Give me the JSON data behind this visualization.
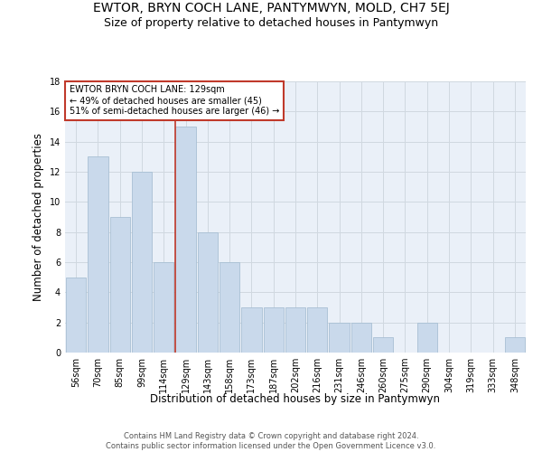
{
  "title": "EWTOR, BRYN COCH LANE, PANTYMWYN, MOLD, CH7 5EJ",
  "subtitle": "Size of property relative to detached houses in Pantymwyn",
  "xlabel": "Distribution of detached houses by size in Pantymwyn",
  "ylabel": "Number of detached properties",
  "categories": [
    "56sqm",
    "70sqm",
    "85sqm",
    "99sqm",
    "114sqm",
    "129sqm",
    "143sqm",
    "158sqm",
    "173sqm",
    "187sqm",
    "202sqm",
    "216sqm",
    "231sqm",
    "246sqm",
    "260sqm",
    "275sqm",
    "290sqm",
    "304sqm",
    "319sqm",
    "333sqm",
    "348sqm"
  ],
  "values": [
    5,
    13,
    9,
    12,
    6,
    15,
    8,
    6,
    3,
    3,
    3,
    3,
    2,
    2,
    1,
    0,
    2,
    0,
    0,
    0,
    1
  ],
  "bar_color": "#c9d9eb",
  "bar_edgecolor": "#a8bfd4",
  "marker_index": 5,
  "marker_line_color": "#c0392b",
  "annotation_line1": "EWTOR BRYN COCH LANE: 129sqm",
  "annotation_line2": "← 49% of detached houses are smaller (45)",
  "annotation_line3": "51% of semi-detached houses are larger (46) →",
  "annotation_box_edgecolor": "#c0392b",
  "ylim": [
    0,
    18
  ],
  "yticks": [
    0,
    2,
    4,
    6,
    8,
    10,
    12,
    14,
    16,
    18
  ],
  "grid_color": "#d0d8e0",
  "background_color": "#eaf0f8",
  "footer_line1": "Contains HM Land Registry data © Crown copyright and database right 2024.",
  "footer_line2": "Contains public sector information licensed under the Open Government Licence v3.0.",
  "title_fontsize": 10,
  "subtitle_fontsize": 9,
  "xlabel_fontsize": 8.5,
  "ylabel_fontsize": 8.5,
  "tick_fontsize": 7,
  "annot_fontsize": 7,
  "footer_fontsize": 6
}
